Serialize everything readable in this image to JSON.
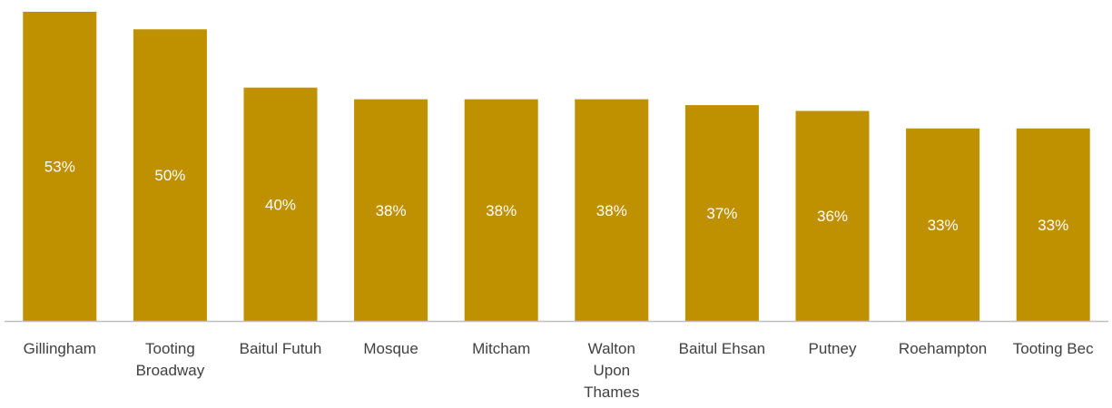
{
  "chart_data": {
    "type": "bar",
    "categories": [
      [
        "Gillingham"
      ],
      [
        "Tooting",
        "Broadway"
      ],
      [
        "Baitul Futuh"
      ],
      [
        "Mosque"
      ],
      [
        "Mitcham"
      ],
      [
        "Walton",
        "Upon",
        "Thames"
      ],
      [
        "Baitul Ehsan"
      ],
      [
        "Putney"
      ],
      [
        "Roehampton"
      ],
      [
        "Tooting Bec"
      ]
    ],
    "values": [
      53,
      50,
      40,
      38,
      38,
      38,
      37,
      36,
      33,
      33
    ],
    "value_labels": [
      "53%",
      "50%",
      "40%",
      "38%",
      "38%",
      "38%",
      "37%",
      "36%",
      "33%",
      "33%"
    ],
    "ylim": [
      0,
      53
    ],
    "bar_color": "#bf9000",
    "axis_color": "#bfbfbf",
    "label_color": "#ffffff",
    "grid": false,
    "legend": "none"
  }
}
